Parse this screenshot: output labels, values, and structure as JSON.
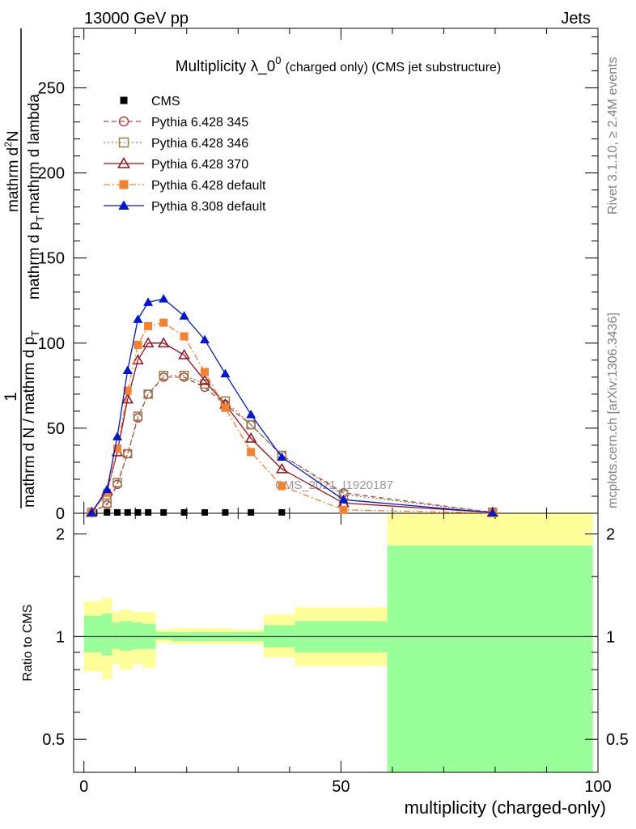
{
  "header": {
    "left": "13000 GeV pp",
    "right": "Jets"
  },
  "side_labels": {
    "rivet": "Rivet 3.1.10, ≥ 2.4M events",
    "mcplots": "mcplots.cern.ch [arXiv:1306.3436]"
  },
  "watermark": "CMS_2021_I1920187",
  "chart_data": {
    "type": "line",
    "title_main": "Multiplicity λ_0",
    "title_sup": "0",
    "title_sub": "(charged only) (CMS jet substructure)",
    "ylabel_parts": {
      "one": "1",
      "denominator": "mathrm d N / mathrm d p",
      "denominator_sub": "T",
      "numerator_top": "mathrm d",
      "numerator_sup": "2",
      "numerator_N": "N",
      "numerator_bottom": "mathrm d p",
      "numerator_bottom_sub": "T",
      "numerator_tail": "mathrm d lambda"
    },
    "xlabel": "multiplicity (charged-only)",
    "xlim": [
      -2,
      100
    ],
    "ylim": [
      0,
      285
    ],
    "x_ticks": [
      "0",
      "50",
      "100"
    ],
    "y_ticks": [
      "50",
      "100",
      "150",
      "200",
      "250"
    ],
    "ratio": {
      "ylabel": "Ratio to CMS",
      "ylim": [
        0.4,
        2.3
      ],
      "y_ticks": [
        "0.5",
        "1",
        "2"
      ],
      "bands": [
        {
          "x0": 0,
          "x1": 3.5,
          "yellow": [
            0.79,
            1.27
          ],
          "green": [
            0.9,
            1.15
          ]
        },
        {
          "x0": 3.5,
          "x1": 5.5,
          "yellow": [
            0.75,
            1.3
          ],
          "green": [
            0.88,
            1.17
          ]
        },
        {
          "x0": 5.5,
          "x1": 7,
          "yellow": [
            0.83,
            1.18
          ],
          "green": [
            0.92,
            1.1
          ]
        },
        {
          "x0": 7,
          "x1": 9.5,
          "yellow": [
            0.8,
            1.2
          ],
          "green": [
            0.91,
            1.11
          ]
        },
        {
          "x0": 9.5,
          "x1": 11.5,
          "yellow": [
            0.83,
            1.18
          ],
          "green": [
            0.92,
            1.1
          ]
        },
        {
          "x0": 11.5,
          "x1": 14,
          "yellow": [
            0.81,
            1.18
          ],
          "green": [
            0.92,
            1.09
          ]
        },
        {
          "x0": 14,
          "x1": 17,
          "yellow": [
            0.96,
            1.05
          ],
          "green": [
            0.98,
            1.03
          ]
        },
        {
          "x0": 17,
          "x1": 21,
          "yellow": [
            0.95,
            1.06
          ],
          "green": [
            0.97,
            1.03
          ]
        },
        {
          "x0": 21,
          "x1": 25,
          "yellow": [
            0.95,
            1.06
          ],
          "green": [
            0.97,
            1.03
          ]
        },
        {
          "x0": 25,
          "x1": 29,
          "yellow": [
            0.95,
            1.06
          ],
          "green": [
            0.97,
            1.03
          ]
        },
        {
          "x0": 29,
          "x1": 35,
          "yellow": [
            0.95,
            1.05
          ],
          "green": [
            0.97,
            1.03
          ]
        },
        {
          "x0": 35,
          "x1": 41,
          "yellow": [
            0.87,
            1.16
          ],
          "green": [
            0.93,
            1.08
          ]
        },
        {
          "x0": 41,
          "x1": 59,
          "yellow": [
            0.82,
            1.22
          ],
          "green": [
            0.9,
            1.11
          ]
        },
        {
          "x0": 59,
          "x1": 99,
          "yellow": [
            0.3,
            3.0
          ],
          "green": [
            0.3,
            1.85
          ]
        }
      ]
    },
    "series": [
      {
        "name": "CMS",
        "style": "data",
        "color": "#000000",
        "marker": "square-filled",
        "x": [
          2,
          4.5,
          6.5,
          8.5,
          10.5,
          12.5,
          15.5,
          19.5,
          23.5,
          27.5,
          32.5,
          38.5
        ],
        "y": [
          0.5,
          0.5,
          0.5,
          0.5,
          0.5,
          0.5,
          0.5,
          0.5,
          0.5,
          0.5,
          0.5,
          0.5
        ]
      },
      {
        "name": "Pythia 6.428 345",
        "style": "dashed",
        "color": "#a84646",
        "marker": "circle-open",
        "x": [
          1.5,
          4.5,
          6.5,
          8.5,
          10.5,
          12.5,
          15.5,
          19.5,
          23.5,
          27.5,
          32.5,
          38.5,
          50.5,
          79.5
        ],
        "y": [
          0.5,
          5,
          17,
          35,
          56,
          70,
          80,
          80,
          74,
          64,
          52,
          34,
          12,
          0.5
        ]
      },
      {
        "name": "Pythia 6.428 346",
        "style": "dotted",
        "color": "#9c7e49",
        "marker": "square-open",
        "x": [
          1.5,
          4.5,
          6.5,
          8.5,
          10.5,
          12.5,
          15.5,
          19.5,
          23.5,
          27.5,
          32.5,
          38.5,
          50.5,
          79.5
        ],
        "y": [
          0.5,
          6,
          18,
          35,
          57,
          70,
          81,
          81,
          76,
          66,
          52,
          34,
          11,
          0.5
        ]
      },
      {
        "name": "Pythia 6.428 370",
        "style": "solid",
        "color": "#9a0f1c",
        "marker": "triangle-open",
        "x": [
          1.5,
          4.5,
          6.5,
          8.5,
          10.5,
          12.5,
          15.5,
          19.5,
          23.5,
          27.5,
          32.5,
          38.5,
          50.5,
          79.5
        ],
        "y": [
          0.5,
          13,
          36,
          67,
          90,
          100,
          100,
          93,
          78,
          64,
          44,
          26,
          6,
          0.5
        ]
      },
      {
        "name": "Pythia 6.428 default",
        "style": "dashdot",
        "color": "#f5812d",
        "marker": "square-filled",
        "x": [
          1.5,
          4.5,
          6.5,
          8.5,
          10.5,
          12.5,
          15.5,
          19.5,
          23.5,
          27.5,
          32.5,
          38.5,
          50.5,
          79.5
        ],
        "y": [
          0.5,
          12,
          38,
          72,
          99,
          110,
          112,
          104,
          83,
          62,
          36,
          16,
          2,
          0.1
        ]
      },
      {
        "name": "Pythia 8.308 default",
        "style": "solid",
        "color": "#0016d4",
        "marker": "triangle-filled",
        "x": [
          1.5,
          4.5,
          6.5,
          8.5,
          10.5,
          12.5,
          15.5,
          19.5,
          23.5,
          27.5,
          32.5,
          38.5,
          50.5,
          79.5
        ],
        "y": [
          0.5,
          14,
          45,
          84,
          114,
          124,
          126,
          116,
          102,
          82,
          58,
          33,
          8,
          0.3
        ]
      }
    ]
  }
}
